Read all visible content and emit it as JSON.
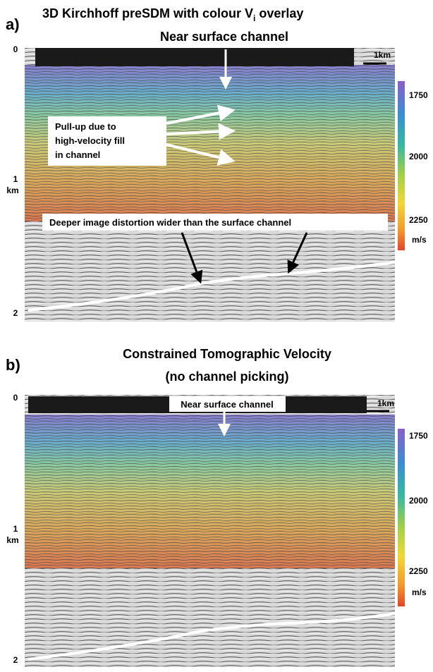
{
  "panels": [
    {
      "label": "a)",
      "title_main": "3D Kirchhoff preSDM with colour V",
      "title_sub": "i",
      "title_end": " overlay",
      "subtitle": "Near surface channel",
      "scale": "1km",
      "depth_labels": [
        "0",
        "1",
        "2"
      ],
      "depth_unit": "km",
      "colorbar_ticks": [
        "1750",
        "2000",
        "2250"
      ],
      "colorbar_unit": "m/s",
      "annotations": [
        [
          "Pull-up due to",
          "high-velocity fill",
          "in channel"
        ],
        [
          "Deeper image distortion wider than the surface channel"
        ]
      ]
    },
    {
      "label": "b)",
      "title_lines": [
        "Constrained Tomographic Velocity",
        "(no channel picking)"
      ],
      "subtitle": "Near surface channel",
      "scale": "1km",
      "depth_labels": [
        "0",
        "1",
        "2"
      ],
      "depth_unit": "km",
      "colorbar_ticks": [
        "1750",
        "2000",
        "2250"
      ],
      "colorbar_unit": "m/s"
    }
  ]
}
